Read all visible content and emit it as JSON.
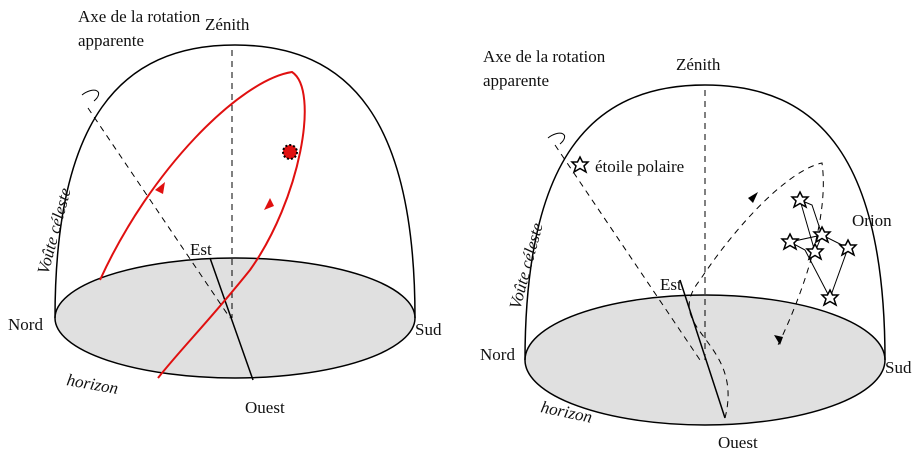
{
  "left": {
    "axis_label": [
      "Axe de la rotation",
      "apparente"
    ],
    "zenith": "Zénith",
    "vault": "Voûte céleste",
    "north": "Nord",
    "south": "Sud",
    "east": "Est",
    "west": "Ouest",
    "horizon": "horizon"
  },
  "right": {
    "axis_label": [
      "Axe de la rotation",
      "apparente"
    ],
    "zenith": "Zénith",
    "vault": "Voûte céleste",
    "north": "Nord",
    "south": "Sud",
    "east": "Est",
    "west": "Ouest",
    "horizon": "horizon",
    "polaris": "étoile polaire",
    "orion": "Orion"
  }
}
